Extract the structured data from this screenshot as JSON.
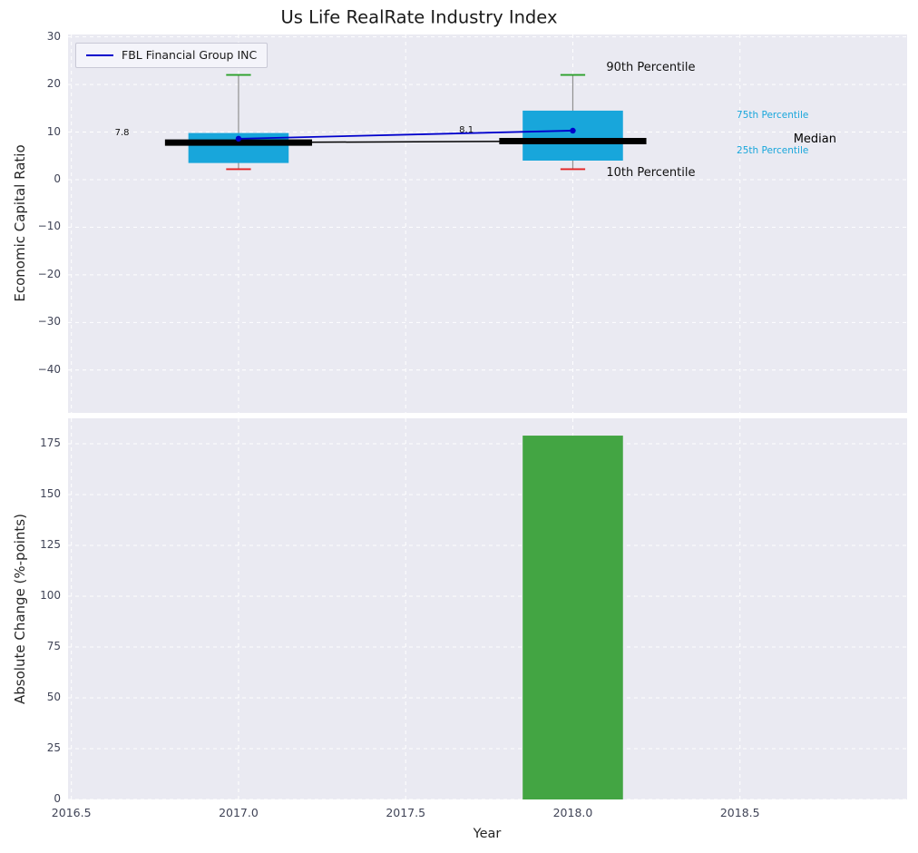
{
  "title": "Us Life RealRate Industry Index",
  "colors": {
    "figure_bg": "#ffffff",
    "axes_bg": "#eaeaf2",
    "grid": "#ffffff",
    "box_fill": "#18a6db",
    "median_line": "#000000",
    "whisker": "#909090",
    "p90_cap": "#2aa02a",
    "p10_cap": "#e32222",
    "series_line": "#0000cc",
    "bar_fill": "#43a543",
    "tick_label": "#404457",
    "percentile_label": "#18a6db",
    "annotation_dark": "#111111"
  },
  "chart_data": [
    {
      "type": "boxplot",
      "title": "Us Life RealRate Industry Index",
      "ylabel": "Economic Capital Ratio",
      "ylim": [
        -49,
        30.5
      ],
      "yticks": [
        30,
        20,
        10,
        0,
        -10,
        -20,
        -30,
        -40
      ],
      "ytick_labels": [
        "30",
        "20",
        "10",
        "0",
        "−10",
        "−20",
        "−30",
        "−40"
      ],
      "xlim": [
        2016.49,
        2019.0
      ],
      "legend": [
        "FBL Financial Group INC"
      ],
      "legend_position": "upper left",
      "grid": "dashed-white",
      "boxes": [
        {
          "x": 2017,
          "p10": 2.2,
          "q1": 3.5,
          "median": 7.8,
          "q3": 9.8,
          "p90": 22
        },
        {
          "x": 2018,
          "p10": 2.2,
          "q1": 4.0,
          "median": 8.1,
          "q3": 14.5,
          "p90": 22
        }
      ],
      "median_series": {
        "x": [
          2017,
          2018
        ],
        "y": [
          7.8,
          8.1
        ]
      },
      "series": [
        {
          "name": "FBL Financial Group INC",
          "x": [
            2017,
            2018
          ],
          "y": [
            8.6,
            10.3
          ]
        }
      ],
      "annotations": [
        {
          "text": "90th Percentile",
          "x": 2018.1,
          "y": 23.3,
          "color": "#111111",
          "size": 13
        },
        {
          "text": "10th Percentile",
          "x": 2018.1,
          "y": 1.1,
          "color": "#111111",
          "size": 13
        },
        {
          "text": "75th Percentile",
          "x": 2018.49,
          "y": 13.4,
          "color": "#18a6db",
          "size": 10.5
        },
        {
          "text": "25th Percentile",
          "x": 2018.49,
          "y": 6.0,
          "color": "#18a6db",
          "size": 10.5
        },
        {
          "text": "Median",
          "x": 2018.66,
          "y": 8.2,
          "color": "#000000",
          "size": 13
        },
        {
          "text": "7.8",
          "x": 2016.63,
          "y": 9.8,
          "color": "#111111",
          "size": 10
        },
        {
          "text": "8.1",
          "x": 2017.66,
          "y": 10.2,
          "color": "#111111",
          "size": 10
        }
      ]
    },
    {
      "type": "bar",
      "ylabel": "Absolute Change (%-points)",
      "xlabel": "Year",
      "ylim": [
        0,
        187.5
      ],
      "yticks": [
        0,
        25,
        50,
        75,
        100,
        125,
        150,
        175
      ],
      "ytick_labels": [
        "0",
        "25",
        "50",
        "75",
        "100",
        "125",
        "150",
        "175"
      ],
      "xticks": [
        2016.5,
        2017.0,
        2017.5,
        2018.0,
        2018.5
      ],
      "xtick_labels": [
        "2016.5",
        "2017.0",
        "2017.5",
        "2018.0",
        "2018.5"
      ],
      "grid": "dashed-white",
      "bars": [
        {
          "x": 2018,
          "value": 179,
          "width": 0.3
        }
      ]
    }
  ]
}
